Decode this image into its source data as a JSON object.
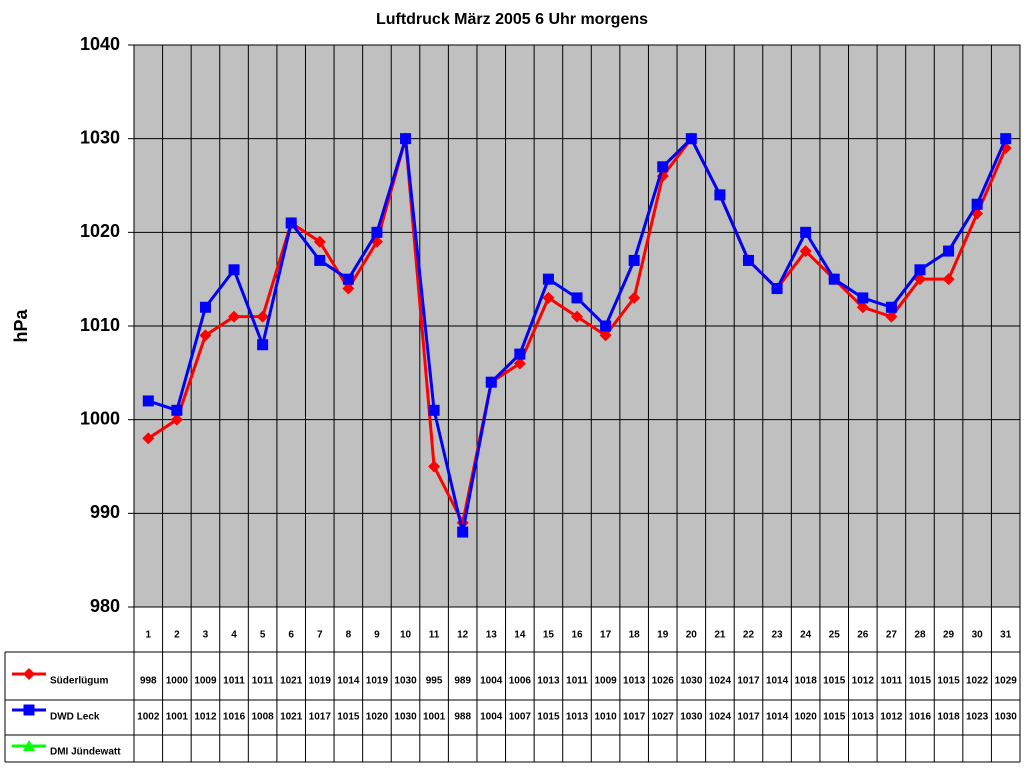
{
  "chart_data": {
    "type": "line",
    "title": "Luftdruck März 2005 6 Uhr morgens",
    "y_label": "hPa",
    "categories": [
      "1",
      "2",
      "3",
      "4",
      "5",
      "6",
      "7",
      "8",
      "9",
      "10",
      "11",
      "12",
      "13",
      "14",
      "15",
      "16",
      "17",
      "18",
      "19",
      "20",
      "21",
      "22",
      "23",
      "24",
      "25",
      "26",
      "27",
      "28",
      "29",
      "30",
      "31"
    ],
    "series": [
      {
        "name": "Süderlügum",
        "color": "#ff0000",
        "marker": "diamond",
        "values": [
          998,
          1000,
          1009,
          1011,
          1011,
          1021,
          1019,
          1014,
          1019,
          1030,
          995,
          989,
          1004,
          1006,
          1013,
          1011,
          1009,
          1013,
          1026,
          1030,
          1024,
          1017,
          1014,
          1018,
          1015,
          1012,
          1011,
          1015,
          1015,
          1022,
          1029
        ]
      },
      {
        "name": "DWD Leck",
        "color": "#0000ff",
        "marker": "square",
        "values": [
          1002,
          1001,
          1012,
          1016,
          1008,
          1021,
          1017,
          1015,
          1020,
          1030,
          1001,
          988,
          1004,
          1007,
          1015,
          1013,
          1010,
          1017,
          1027,
          1030,
          1024,
          1017,
          1014,
          1020,
          1015,
          1013,
          1012,
          1016,
          1018,
          1023,
          1030
        ]
      },
      {
        "name": "DMI Jündewatt",
        "color": "#00ff00",
        "marker": "triangle",
        "values": [
          null,
          null,
          null,
          null,
          null,
          null,
          null,
          null,
          null,
          null,
          null,
          null,
          null,
          null,
          null,
          null,
          null,
          null,
          null,
          null,
          null,
          null,
          null,
          null,
          null,
          null,
          null,
          null,
          null,
          null,
          null
        ]
      }
    ],
    "ylim": [
      980,
      1040
    ],
    "yticks": [
      980,
      990,
      1000,
      1010,
      1020,
      1030,
      1040
    ],
    "grid": true,
    "data_table": true
  }
}
